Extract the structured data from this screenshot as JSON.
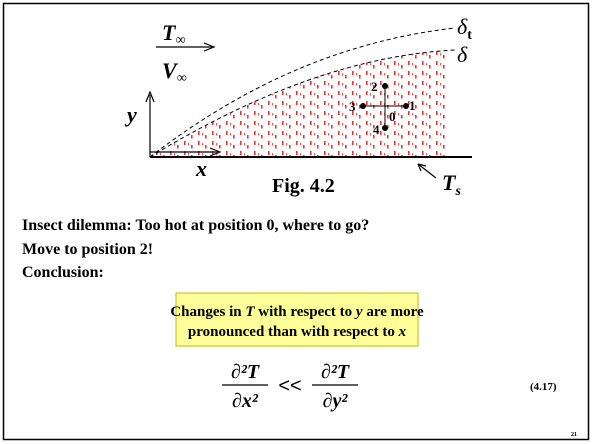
{
  "diagram": {
    "free_stream_temperature": {
      "symbol": "T",
      "subscript": "∞"
    },
    "free_stream_velocity": {
      "symbol": "V",
      "subscript": "∞"
    },
    "thermal_boundary_layer": {
      "symbol": "δ",
      "subscript": "t"
    },
    "velocity_boundary_layer": "δ",
    "y_axis": "y",
    "x_axis": "x",
    "caption": "Fig. 4.2",
    "surface_temperature": {
      "symbol": "T",
      "subscript": "s"
    },
    "positions": [
      "0",
      "1",
      "2",
      "3",
      "4"
    ]
  },
  "text": {
    "lines": [
      "Insect dilemma: Too hot at position 0, where to go?",
      "Move to position 2!",
      "Conclusion:"
    ]
  },
  "callout": {
    "segments": [
      "Changes in ",
      "T",
      " with respect to ",
      "y",
      " are more",
      "pronounced than with respect to ",
      "x"
    ]
  },
  "equation": {
    "lhs": {
      "numerator": "∂²T",
      "denominator": "∂x²"
    },
    "operator": "<<",
    "rhs": {
      "numerator": "∂²T",
      "denominator": "∂y²"
    },
    "number": "(4.17)"
  },
  "page_number": "21"
}
